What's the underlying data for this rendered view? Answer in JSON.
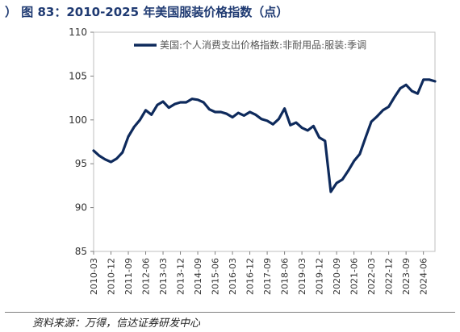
{
  "figure_title": "）  图 83：2010-2025 年美国服装价格指数（点）",
  "source_note": "资料来源：万得，信达证券研发中心",
  "colors": {
    "line": "#0e2a5c",
    "title": "#1f3a72"
  },
  "chart_data": {
    "type": "line",
    "title": "",
    "xlabel": "",
    "ylabel": "",
    "ylim": [
      85,
      110
    ],
    "yticks": [
      "85",
      "90",
      "95",
      "100",
      "105",
      "110"
    ],
    "grid": false,
    "legend_position": "top-right",
    "xtick_labels": [
      "2010-03",
      "2010-12",
      "2011-09",
      "2012-06",
      "2013-03",
      "2013-12",
      "2014-09",
      "2015-06",
      "2016-03",
      "2016-12",
      "2017-09",
      "2018-06",
      "2019-03",
      "2019-12",
      "2020-09",
      "2021-06",
      "2022-03",
      "2022-12",
      "2023-09",
      "2024-06"
    ],
    "series": [
      {
        "name": "美国:个人消费支出价格指数:非耐用品:服装:季调",
        "x": [
          "2010-03",
          "2010-06",
          "2010-09",
          "2010-12",
          "2011-03",
          "2011-06",
          "2011-09",
          "2011-12",
          "2012-03",
          "2012-06",
          "2012-09",
          "2012-12",
          "2013-03",
          "2013-06",
          "2013-09",
          "2013-12",
          "2014-03",
          "2014-06",
          "2014-09",
          "2014-12",
          "2015-03",
          "2015-06",
          "2015-09",
          "2015-12",
          "2016-03",
          "2016-06",
          "2016-09",
          "2016-12",
          "2017-03",
          "2017-06",
          "2017-09",
          "2017-12",
          "2018-03",
          "2018-06",
          "2018-09",
          "2018-12",
          "2019-03",
          "2019-06",
          "2019-09",
          "2019-12",
          "2020-03",
          "2020-06",
          "2020-09",
          "2020-12",
          "2021-03",
          "2021-06",
          "2021-09",
          "2021-12",
          "2022-03",
          "2022-06",
          "2022-09",
          "2022-12",
          "2023-03",
          "2023-06",
          "2023-09",
          "2023-12",
          "2024-03",
          "2024-06",
          "2024-09",
          "2024-12"
        ],
        "y": [
          96.5,
          95.9,
          95.5,
          95.2,
          95.6,
          96.3,
          98.1,
          99.2,
          100.0,
          101.1,
          100.6,
          101.7,
          102.1,
          101.4,
          101.8,
          102.0,
          102.0,
          102.4,
          102.3,
          102.0,
          101.2,
          100.9,
          100.9,
          100.7,
          100.3,
          100.8,
          100.5,
          100.9,
          100.6,
          100.1,
          99.9,
          99.5,
          100.1,
          101.3,
          99.4,
          99.7,
          99.1,
          98.8,
          99.3,
          98.0,
          97.6,
          91.8,
          92.8,
          93.2,
          94.2,
          95.3,
          96.1,
          98.0,
          99.8,
          100.4,
          101.1,
          101.5,
          102.6,
          103.6,
          104.0,
          103.3,
          103.0,
          104.6,
          104.6,
          104.4
        ]
      }
    ]
  }
}
